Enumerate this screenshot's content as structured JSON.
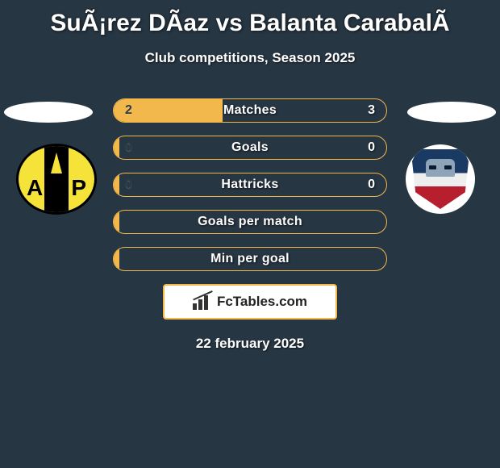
{
  "title": "SuÃ¡rez DÃ­az vs Balanta CarabalÃ­",
  "subtitle": "Club competitions, Season 2025",
  "date": "22 february 2025",
  "brand": "FcTables.com",
  "colors": {
    "bg": "#273643",
    "accent": "#f2b84b",
    "text": "#ffffff"
  },
  "team_left": {
    "letters_left": "A",
    "letters_right": "P"
  },
  "bars": [
    {
      "label": "Matches",
      "left": "2",
      "right": "3",
      "left_fill_pct": 40
    },
    {
      "label": "Goals",
      "left": "0",
      "right": "0",
      "left_fill_pct": 2
    },
    {
      "label": "Hattricks",
      "left": "0",
      "right": "0",
      "left_fill_pct": 2
    },
    {
      "label": "Goals per match",
      "left": "",
      "right": "",
      "left_fill_pct": 2
    },
    {
      "label": "Min per goal",
      "left": "",
      "right": "",
      "left_fill_pct": 2
    }
  ]
}
